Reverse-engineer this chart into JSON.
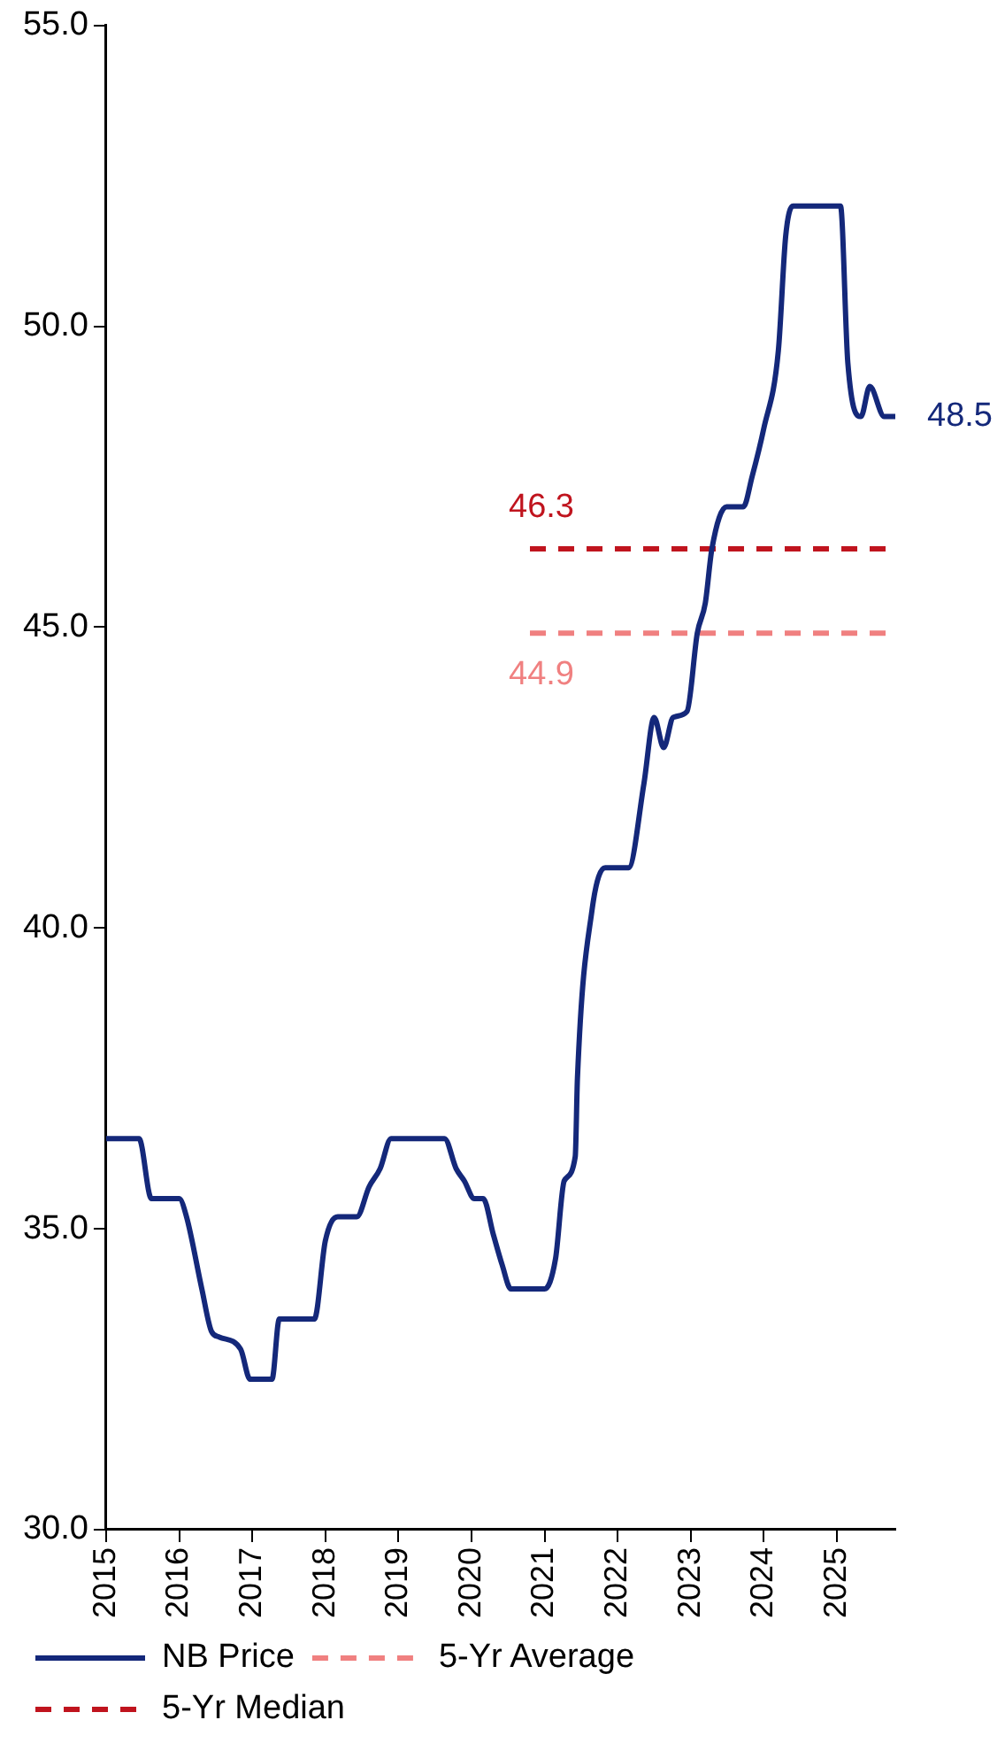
{
  "chart_data": {
    "type": "line",
    "xlim": [
      2015,
      2025.8
    ],
    "xticks": [
      2015,
      2016,
      2017,
      2018,
      2019,
      2020,
      2021,
      2022,
      2023,
      2024,
      2025
    ],
    "ylim": [
      30,
      55
    ],
    "yticks": [
      {
        "value": 30,
        "label": "30.0"
      },
      {
        "value": 35,
        "label": "35.0"
      },
      {
        "value": 40,
        "label": "40.0"
      },
      {
        "value": 45,
        "label": "45.0"
      },
      {
        "value": 50,
        "label": "50.0"
      },
      {
        "value": 55,
        "label": "55.0"
      }
    ],
    "grid": false,
    "legend": "bottom",
    "marker": "none",
    "series": [
      {
        "name": "NB Price",
        "color": "#14287a",
        "line_style": "solid",
        "x": [
          2015,
          2015.45,
          2015.62,
          2016.0,
          2016.1,
          2016.31,
          2016.44,
          2016.55,
          2016.84,
          2016.97,
          2017.27,
          2017.37,
          2017.85,
          2018.0,
          2018.17,
          2018.43,
          2018.6,
          2018.75,
          2018.9,
          2019.63,
          2019.79,
          2019.9,
          2020.04,
          2020.16,
          2020.3,
          2020.42,
          2020.54,
          2021.0,
          2021.15,
          2021.27,
          2021.42,
          2021.45,
          2021.65,
          2021.83,
          2022.15,
          2022.36,
          2022.5,
          2022.63,
          2022.76,
          2022.95,
          2023.09,
          2023.2,
          2023.29,
          2023.49,
          2023.72,
          2023.84,
          2024.0,
          2024.2,
          2024.3,
          2024.4,
          2025.05,
          2025.15,
          2025.33,
          2025.45,
          2025.65,
          2025.8
        ],
        "values": [
          36.5,
          36.5,
          35.5,
          35.5,
          35.2,
          34.0,
          33.3,
          33.2,
          33.0,
          32.5,
          32.5,
          33.5,
          33.5,
          34.8,
          35.2,
          35.2,
          35.7,
          36.0,
          36.5,
          36.5,
          36.0,
          35.8,
          35.5,
          35.5,
          34.9,
          34.4,
          34.0,
          34.0,
          34.5,
          35.8,
          36.2,
          37.5,
          40.3,
          41.0,
          41.0,
          42.4,
          43.5,
          43.0,
          43.5,
          43.6,
          44.9,
          45.4,
          46.3,
          47.0,
          47.0,
          47.5,
          48.3,
          49.6,
          51.5,
          52.0,
          52.0,
          49.4,
          48.5,
          49.0,
          48.5,
          48.5
        ],
        "value_labels": [
          null,
          null,
          null,
          null,
          null,
          null,
          null,
          null,
          null,
          null,
          null,
          null,
          null,
          null,
          null,
          null,
          null,
          null,
          null,
          null,
          null,
          null,
          null,
          null,
          null,
          null,
          null,
          null,
          null,
          null,
          null,
          null,
          null,
          null,
          null,
          null,
          null,
          null,
          null,
          null,
          null,
          null,
          null,
          null,
          null,
          null,
          null,
          null,
          null,
          null,
          null,
          null,
          null,
          null,
          null,
          "48.5"
        ]
      },
      {
        "name": "5-Yr Average",
        "color": "#f08080",
        "line_style": "dashed",
        "x": [
          2020.8,
          2025.8
        ],
        "values": [
          44.9,
          44.9
        ],
        "value_labels": [
          "44.9",
          null
        ]
      },
      {
        "name": "5-Yr Median",
        "color": "#c0141e",
        "line_style": "dashed",
        "x": [
          2020.8,
          2025.8
        ],
        "values": [
          46.3,
          46.3
        ],
        "value_labels": [
          "46.3",
          null
        ]
      }
    ]
  }
}
